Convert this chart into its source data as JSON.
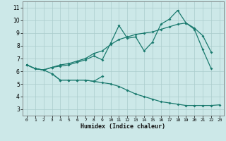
{
  "xlabel": "Humidex (Indice chaleur)",
  "bg_color": "#cce8e8",
  "grid_color": "#aacccc",
  "line_color": "#1a7a6e",
  "xlim": [
    -0.5,
    23.5
  ],
  "ylim": [
    2.5,
    11.5
  ],
  "xticks": [
    0,
    1,
    2,
    3,
    4,
    5,
    6,
    7,
    8,
    9,
    10,
    11,
    12,
    13,
    14,
    15,
    16,
    17,
    18,
    19,
    20,
    21,
    22,
    23
  ],
  "yticks": [
    3,
    4,
    5,
    6,
    7,
    8,
    9,
    10,
    11
  ],
  "series1_x": [
    0,
    1,
    2,
    3,
    4,
    5,
    6,
    7,
    8,
    9,
    10,
    11,
    12,
    13,
    14,
    15,
    16,
    17,
    18,
    19,
    20,
    21,
    22
  ],
  "series1_y": [
    6.5,
    6.2,
    6.1,
    6.3,
    6.4,
    6.5,
    6.7,
    6.9,
    7.2,
    6.9,
    8.2,
    9.6,
    8.6,
    8.7,
    7.6,
    8.3,
    9.7,
    10.1,
    10.8,
    9.8,
    9.3,
    7.7,
    6.2
  ],
  "series2_x": [
    0,
    1,
    2,
    3,
    4,
    5,
    6,
    7,
    8,
    9,
    10,
    11,
    12,
    13,
    14,
    15,
    16,
    17,
    18,
    19,
    20,
    21,
    22
  ],
  "series2_y": [
    6.5,
    6.2,
    6.1,
    6.3,
    6.5,
    6.6,
    6.8,
    7.0,
    7.4,
    7.6,
    8.1,
    8.5,
    8.7,
    8.9,
    9.0,
    9.1,
    9.3,
    9.5,
    9.7,
    9.8,
    9.4,
    8.8,
    7.5
  ],
  "series3_x": [
    0,
    1,
    2,
    3,
    4,
    5,
    6,
    7,
    8,
    9
  ],
  "series3_y": [
    6.5,
    6.2,
    6.1,
    5.8,
    5.3,
    5.3,
    5.3,
    5.3,
    5.2,
    5.6
  ],
  "series4_x": [
    3,
    4,
    5,
    6,
    7,
    8,
    9,
    10,
    11,
    12,
    13,
    14,
    15,
    16,
    17,
    18,
    19,
    20,
    21,
    22,
    23
  ],
  "series4_y": [
    5.8,
    5.3,
    5.3,
    5.3,
    5.3,
    5.2,
    5.1,
    5.0,
    4.8,
    4.5,
    4.2,
    4.0,
    3.8,
    3.6,
    3.5,
    3.4,
    3.3,
    3.3,
    3.3,
    3.3,
    3.35
  ]
}
